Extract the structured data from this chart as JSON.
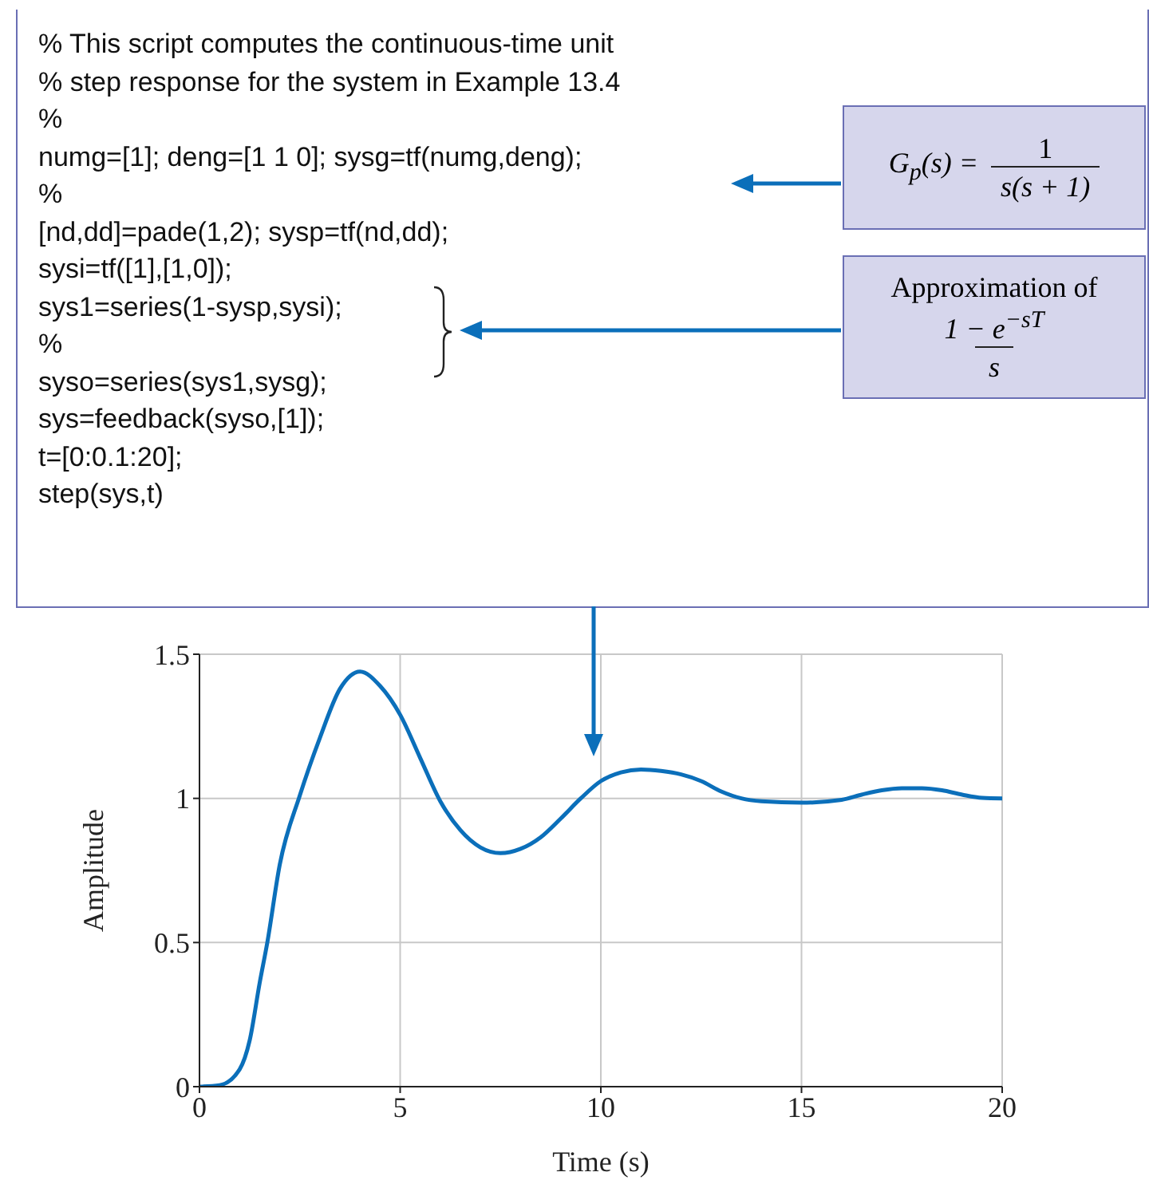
{
  "chart_data": {
    "type": "line",
    "xlabel": "Time (s)",
    "ylabel": "Amplitude",
    "x": [
      0,
      0.5,
      1,
      1.25,
      1.5,
      1.69,
      2,
      2.5,
      3,
      3.5,
      4,
      4.5,
      5,
      5.5,
      6,
      6.5,
      7,
      7.5,
      8,
      8.5,
      9,
      9.5,
      10,
      10.5,
      11,
      11.5,
      12,
      12.5,
      13,
      13.5,
      14,
      15,
      16,
      16.5,
      17,
      17.5,
      18,
      18.5,
      19,
      19.5,
      20
    ],
    "series": [
      {
        "color": "#0b6fba",
        "values": [
          0,
          0.005,
          0.06,
          0.16,
          0.36,
          0.5,
          0.77,
          1.01,
          1.21,
          1.38,
          1.44,
          1.39,
          1.29,
          1.14,
          0.99,
          0.89,
          0.83,
          0.81,
          0.825,
          0.865,
          0.93,
          1.0,
          1.06,
          1.09,
          1.1,
          1.095,
          1.083,
          1.06,
          1.024,
          1.0,
          0.99,
          0.985,
          0.995,
          1.013,
          1.028,
          1.035,
          1.035,
          1.028,
          1.013,
          1.002,
          1.0
        ]
      }
    ],
    "xlim": [
      0,
      20
    ],
    "xticks": [
      0,
      5,
      10,
      15,
      20
    ],
    "ylim": [
      0,
      1.5
    ],
    "yticks": [
      0,
      0.5,
      1,
      1.5
    ],
    "grid": true,
    "marker": "none",
    "line_style": "solid",
    "annotations": [
      "% This script computes the continuous-time unit",
      "% step response for the system in Example 13.4",
      "%",
      "numg=[1]; deng=[1 1 0]; sysg=tf(numg,deng);",
      "%",
      "[nd,dd]=pade(1,2); sysp=tf(nd,dd);",
      "sysi=tf([1],[1,0]);",
      "sys1=series(1-sysp,sysi);",
      "%",
      "syso=series(sys1,sysg);",
      "sys=feedback(syso,[1]);",
      "t=[0:0.1:20];",
      "step(sys,t)",
      "G$_{p}$(s) =",
      "1",
      "s(s + 1)",
      "Approximation of",
      "1 − e$^{−sT}$",
      "s"
    ]
  }
}
